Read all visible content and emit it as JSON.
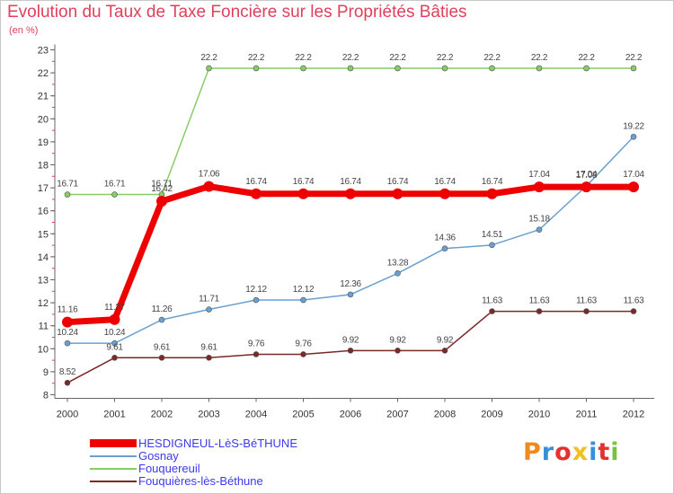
{
  "chart_data": {
    "type": "line",
    "title": "Evolution du Taux de Taxe Foncière sur les Propriétés Bâties",
    "subtitle": "(en %)",
    "x": [
      "2000",
      "2001",
      "2002",
      "2003",
      "2004",
      "2005",
      "2006",
      "2007",
      "2008",
      "2009",
      "2010",
      "2011",
      "2012"
    ],
    "yticks": [
      "8",
      "9",
      "10",
      "11",
      "12",
      "13",
      "14",
      "15",
      "16",
      "17",
      "18",
      "19",
      "20",
      "21",
      "22",
      "23"
    ],
    "ylim": [
      8,
      23
    ],
    "grid": false,
    "legend_position": "bottom-left",
    "series": [
      {
        "name": "HESDIGNEUL-LèS-BéTHUNE",
        "color": "#ee0000",
        "values": [
          11.16,
          11.27,
          16.42,
          17.06,
          16.74,
          16.74,
          16.74,
          16.74,
          16.74,
          16.74,
          17.04,
          17.04,
          17.04
        ],
        "labels": [
          "11.16",
          "11.27",
          "16.42",
          "17.06",
          "16.74",
          "16.74",
          "16.74",
          "16.74",
          "16.74",
          "16.74",
          "17.04",
          "17.04",
          "17.04"
        ]
      },
      {
        "name": "Gosnay",
        "color": "#6aa0d0",
        "values": [
          10.24,
          10.24,
          11.26,
          11.71,
          12.12,
          12.12,
          12.36,
          13.28,
          14.36,
          14.51,
          15.18,
          17.08,
          19.22
        ],
        "labels": [
          "10.24",
          "10.24",
          "11.26",
          "11.71",
          "12.12",
          "12.12",
          "12.36",
          "13.28",
          "14.36",
          "14.51",
          "15.18",
          "17.08",
          "19.22"
        ]
      },
      {
        "name": "Fouquereuil",
        "color": "#88cc66",
        "values": [
          16.71,
          16.71,
          16.71,
          22.2,
          22.2,
          22.2,
          22.2,
          22.2,
          22.2,
          22.2,
          22.2,
          22.2,
          22.2
        ],
        "labels": [
          "16.71",
          "16.71",
          "16.71",
          "22.2",
          "22.2",
          "22.2",
          "22.2",
          "22.2",
          "22.2",
          "22.2",
          "22.2",
          "22.2",
          "22.2"
        ]
      },
      {
        "name": "Fouquières-lès-Béthune",
        "color": "#7a2828",
        "values": [
          8.52,
          9.61,
          9.61,
          9.61,
          9.76,
          9.76,
          9.92,
          9.92,
          9.92,
          11.63,
          11.63,
          11.63,
          11.63
        ],
        "labels": [
          "8.52",
          "9.61",
          "9.61",
          "9.61",
          "9.76",
          "9.76",
          "9.92",
          "9.92",
          "9.92",
          "11.63",
          "11.63",
          "11.63",
          "11.63"
        ]
      }
    ]
  },
  "legend": {
    "items": [
      {
        "label": "HESDIGNEUL-LèS-BéTHUNE",
        "color": "#ee0000"
      },
      {
        "label": "Gosnay",
        "color": "#6aa0d0"
      },
      {
        "label": "Fouquereuil",
        "color": "#88cc66"
      },
      {
        "label": "Fouquières-lès-Béthune",
        "color": "#7a2828"
      }
    ]
  },
  "logo": {
    "text": "Proxiti",
    "colors": [
      "#f08a1c",
      "#3a8fd8",
      "#e53030",
      "#f0c020",
      "#3a8fd8",
      "#e53030",
      "#7ac143"
    ]
  }
}
